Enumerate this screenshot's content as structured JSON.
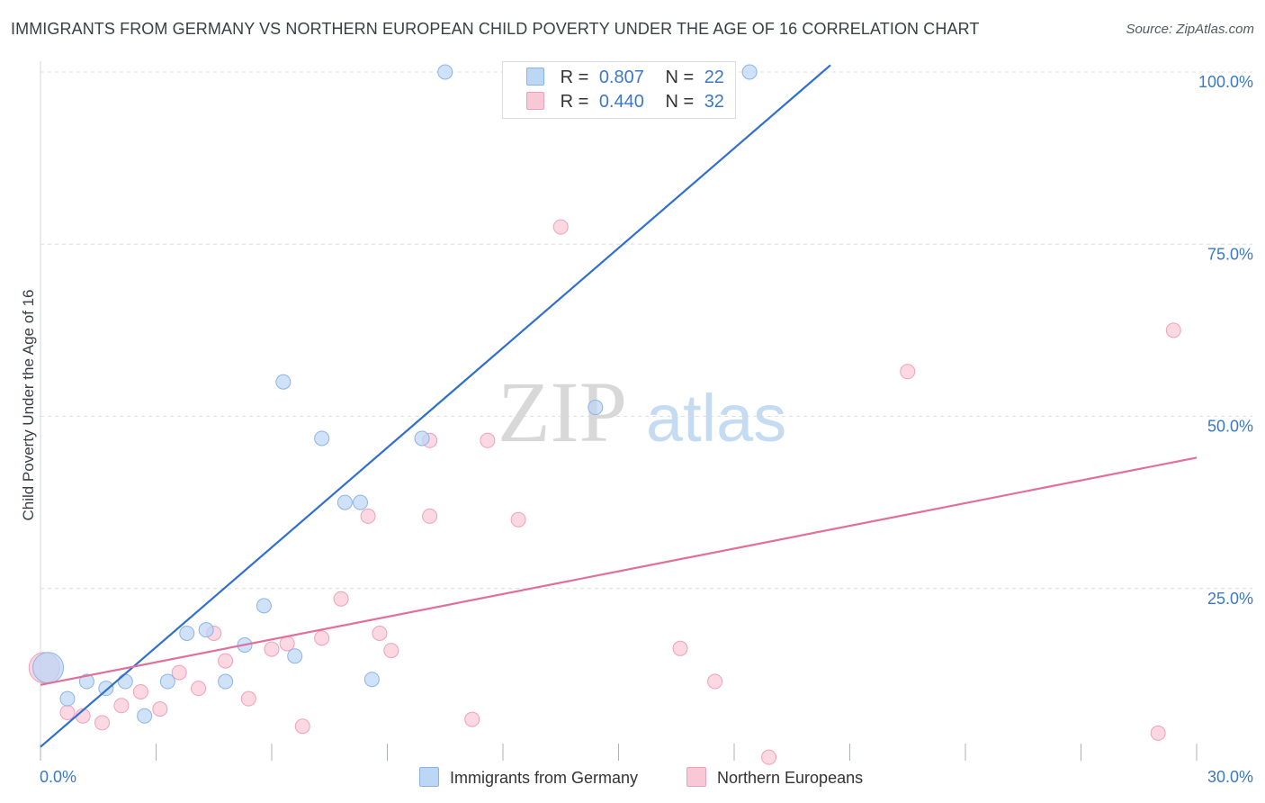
{
  "title": "IMMIGRANTS FROM GERMANY VS NORTHERN EUROPEAN CHILD POVERTY UNDER THE AGE OF 16 CORRELATION CHART",
  "source": "Source: ZipAtlas.com",
  "watermark": {
    "zip": "ZIP",
    "atlas": "atlas"
  },
  "legend": {
    "r_label": "R =",
    "n_label": "N =",
    "germany": {
      "r": "0.807",
      "n": "22"
    },
    "northern": {
      "r": "0.440",
      "n": "32"
    }
  },
  "colors": {
    "germany_fill": "#bcd6f5",
    "germany_stroke": "#8bb4e6",
    "germany_line": "#2f6fcf",
    "northern_fill": "#f9c8d6",
    "northern_stroke": "#f0a0bb",
    "northern_line": "#e26f99",
    "tick_label": "#3a78c9",
    "grid": "#dcdfe3"
  },
  "chart_data": {
    "type": "scatter",
    "title": "IMMIGRANTS FROM GERMANY VS NORTHERN EUROPEAN CHILD POVERTY UNDER THE AGE OF 16 CORRELATION CHART",
    "xlabel": "",
    "ylabel": "Child Poverty Under the Age of 16",
    "xlim": [
      0,
      30
    ],
    "ylim": [
      0,
      100
    ],
    "x_tick_labels": [
      "0.0%",
      "30.0%"
    ],
    "y_ticks": [
      25,
      50,
      75,
      100
    ],
    "y_tick_labels": [
      "25.0%",
      "50.0%",
      "75.0%",
      "100.0%"
    ],
    "series": [
      {
        "name": "Immigrants from Germany",
        "r": 0.807,
        "n": 22,
        "trend": {
          "x": [
            0,
            20.5
          ],
          "y": [
            2.0,
            101.0
          ]
        },
        "points": [
          {
            "x": 0.2,
            "y": 13.5,
            "big": true
          },
          {
            "x": 0.7,
            "y": 9.0
          },
          {
            "x": 1.2,
            "y": 11.5
          },
          {
            "x": 1.7,
            "y": 10.5
          },
          {
            "x": 2.2,
            "y": 11.5
          },
          {
            "x": 2.7,
            "y": 6.5
          },
          {
            "x": 3.3,
            "y": 11.5
          },
          {
            "x": 3.8,
            "y": 18.5
          },
          {
            "x": 4.3,
            "y": 19.0
          },
          {
            "x": 4.8,
            "y": 11.5
          },
          {
            "x": 5.3,
            "y": 16.8
          },
          {
            "x": 5.8,
            "y": 22.5
          },
          {
            "x": 6.3,
            "y": 55.0
          },
          {
            "x": 6.6,
            "y": 15.2
          },
          {
            "x": 7.3,
            "y": 46.8
          },
          {
            "x": 7.9,
            "y": 37.5
          },
          {
            "x": 8.3,
            "y": 37.5
          },
          {
            "x": 8.6,
            "y": 11.8
          },
          {
            "x": 9.9,
            "y": 46.8
          },
          {
            "x": 10.5,
            "y": 100.0
          },
          {
            "x": 14.4,
            "y": 51.3
          },
          {
            "x": 18.4,
            "y": 100.0
          }
        ]
      },
      {
        "name": "Northern Europeans",
        "r": 0.44,
        "n": 32,
        "trend": {
          "x": [
            0,
            30
          ],
          "y": [
            11.0,
            44.0
          ]
        },
        "points": [
          {
            "x": 0.1,
            "y": 13.5,
            "big": true
          },
          {
            "x": 0.7,
            "y": 7.0
          },
          {
            "x": 1.1,
            "y": 6.5
          },
          {
            "x": 1.6,
            "y": 5.5
          },
          {
            "x": 2.1,
            "y": 8.0
          },
          {
            "x": 2.6,
            "y": 10.0
          },
          {
            "x": 3.1,
            "y": 7.5
          },
          {
            "x": 3.6,
            "y": 12.8
          },
          {
            "x": 4.1,
            "y": 10.5
          },
          {
            "x": 4.5,
            "y": 18.5
          },
          {
            "x": 4.8,
            "y": 14.5
          },
          {
            "x": 5.4,
            "y": 9.0
          },
          {
            "x": 6.0,
            "y": 16.2
          },
          {
            "x": 6.4,
            "y": 17.0
          },
          {
            "x": 6.8,
            "y": 5.0
          },
          {
            "x": 7.3,
            "y": 17.8
          },
          {
            "x": 7.8,
            "y": 23.5
          },
          {
            "x": 8.5,
            "y": 35.5
          },
          {
            "x": 8.8,
            "y": 18.5
          },
          {
            "x": 9.1,
            "y": 16.0
          },
          {
            "x": 10.1,
            "y": 35.5
          },
          {
            "x": 10.1,
            "y": 46.5
          },
          {
            "x": 11.2,
            "y": 6.0
          },
          {
            "x": 11.6,
            "y": 46.5
          },
          {
            "x": 12.4,
            "y": 35.0
          },
          {
            "x": 13.5,
            "y": 77.5
          },
          {
            "x": 16.6,
            "y": 16.3
          },
          {
            "x": 17.5,
            "y": 11.5
          },
          {
            "x": 18.9,
            "y": 0.5
          },
          {
            "x": 22.5,
            "y": 56.5
          },
          {
            "x": 29.0,
            "y": 4.0
          },
          {
            "x": 29.4,
            "y": 62.5
          }
        ]
      }
    ]
  }
}
